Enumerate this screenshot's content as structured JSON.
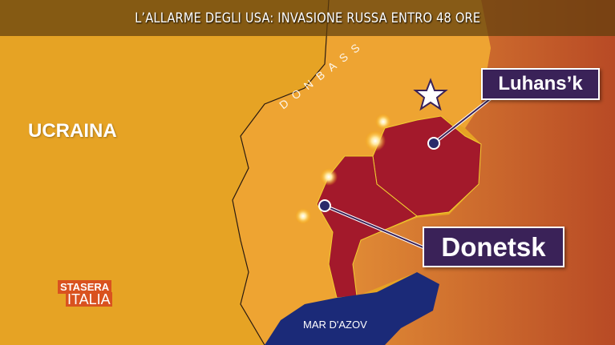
{
  "header": {
    "title": "L’ALLARME DEGLI USA: INVASIONE RUSSA ENTRO 48 ORE"
  },
  "map": {
    "country_label": "UCRAINA",
    "region_label": "DONBASS",
    "sea_label": "MAR D'AZOV",
    "cities": [
      {
        "name": "Luhans’k"
      },
      {
        "name": "Donetsk"
      }
    ],
    "icons": [
      "star-icon",
      "explosion-icon",
      "city-dot-icon"
    ],
    "colors": {
      "ukraine": "#e6a324",
      "donbass": "#eea432",
      "russia": "#c9582b",
      "separatist": "#a3192b",
      "sea": "#1b2a78",
      "callout": "#3a2258"
    }
  },
  "logo": {
    "line1": "STASERA",
    "line2": "ITALIA"
  }
}
